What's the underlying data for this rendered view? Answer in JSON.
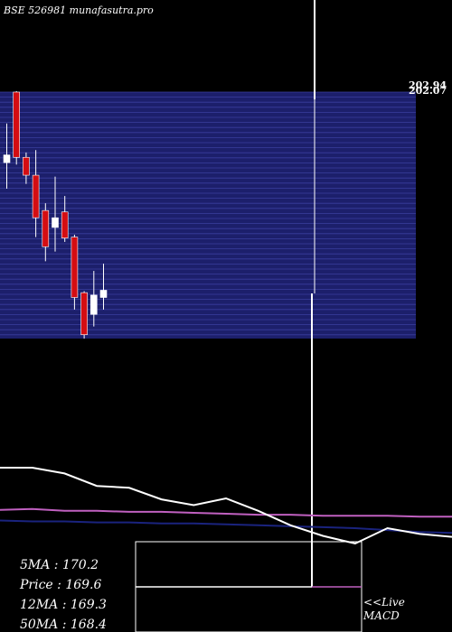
{
  "chart_data": {
    "type": "candlestick",
    "title": "BSE 526981 munafasutra.pro",
    "price_labels_top": [
      "202.94",
      "202.07"
    ],
    "candles": [
      {
        "open": 190.0,
        "high": 196.5,
        "low": 183.0,
        "close": 188.4,
        "color": "white"
      },
      {
        "open": 203.0,
        "high": 203.2,
        "low": 188.0,
        "close": 189.5,
        "color": "red"
      },
      {
        "open": 189.5,
        "high": 190.5,
        "low": 184.0,
        "close": 185.8,
        "color": "red"
      },
      {
        "open": 185.8,
        "high": 191.0,
        "low": 173.0,
        "close": 177.0,
        "color": "red"
      },
      {
        "open": 178.5,
        "high": 180.0,
        "low": 168.0,
        "close": 171.0,
        "color": "red"
      },
      {
        "open": 175.0,
        "high": 185.5,
        "low": 170.0,
        "close": 177.0,
        "color": "white"
      },
      {
        "open": 178.2,
        "high": 181.5,
        "low": 172.0,
        "close": 172.8,
        "color": "red"
      },
      {
        "open": 173.0,
        "high": 173.5,
        "low": 158.0,
        "close": 160.5,
        "color": "red"
      },
      {
        "open": 161.5,
        "high": 161.8,
        "low": 152.0,
        "close": 152.8,
        "color": "red"
      },
      {
        "open": 157.0,
        "high": 166.0,
        "low": 154.5,
        "close": 161.0,
        "color": "white"
      },
      {
        "open": 160.5,
        "high": 167.5,
        "low": 158.0,
        "close": 162.0,
        "color": "white"
      }
    ],
    "band_range": [
      152.0,
      203.0
    ],
    "ma_lines": {
      "white": [
        118,
        118,
        124,
        137,
        139,
        151,
        157,
        150,
        163,
        178,
        189,
        197,
        181,
        187,
        190
      ],
      "magenta": [
        162,
        161,
        163,
        163,
        164,
        164,
        165,
        166,
        167,
        167,
        168,
        168,
        168,
        169,
        169
      ],
      "navy": [
        173,
        174,
        174,
        175,
        175,
        176,
        176,
        177,
        178,
        179,
        180,
        181,
        183,
        185,
        186
      ]
    },
    "stats": [
      {
        "label": "5MA",
        "value": "170.2"
      },
      {
        "label": "Price",
        "value": "169.6"
      },
      {
        "label": "12MA",
        "value": "169.3"
      },
      {
        "label": "50MA",
        "value": "168.4"
      }
    ],
    "macd_label": "<<Live MACD",
    "macd_line1": "<<Live",
    "macd_line2": "MACD"
  },
  "colors": {
    "background": "#000000",
    "band": "#1c1f6b",
    "band_line": "#3a3f9e",
    "bull": "#ffffff",
    "bear": "#d40d12",
    "magenta": "#c060c0",
    "navy": "#1a237e"
  }
}
